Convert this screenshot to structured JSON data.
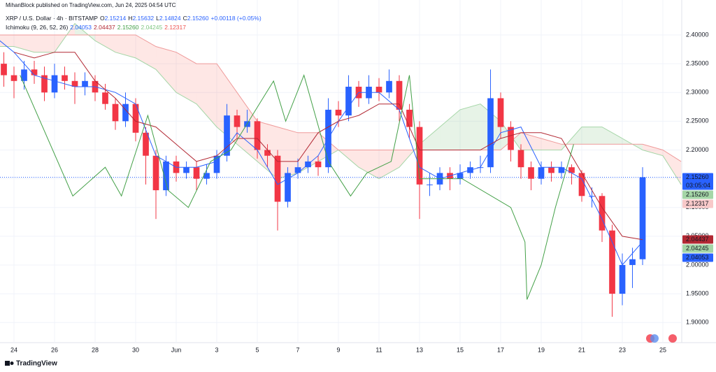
{
  "header": {
    "published": "MihanBlock published on TradingView.com, Jun 24, 2025 04:54 UTC",
    "symbol": "XRP / U.S. Dollar · 4h · BITSTAMP",
    "ohlc": [
      {
        "label": "O",
        "value": "2.15214"
      },
      {
        "label": "H",
        "value": "2.15632"
      },
      {
        "label": "L",
        "value": "2.14824"
      },
      {
        "label": "C",
        "value": "2.15260"
      }
    ],
    "change": "+0.00118 (+0.05%)",
    "indicator": "Ichimoku (9, 26, 52, 26)",
    "indicator_values": [
      {
        "value": "2.04053",
        "color": "#2962ff"
      },
      {
        "value": "2.04437",
        "color": "#b22833"
      },
      {
        "value": "2.15260",
        "color": "#43a047"
      },
      {
        "value": "2.04245",
        "color": "#81c784"
      },
      {
        "value": "2.12317",
        "color": "#ef5350"
      }
    ]
  },
  "chart_data": {
    "type": "candlestick",
    "xlim": [
      -0.69,
      32.93
    ],
    "ylim": [
      1.865,
      2.4608
    ],
    "xticks": [
      {
        "value": 0,
        "label": "24"
      },
      {
        "value": 2,
        "label": "26"
      },
      {
        "value": 4,
        "label": "28"
      },
      {
        "value": 6,
        "label": "30"
      },
      {
        "value": 8,
        "label": "Jun"
      },
      {
        "value": 10,
        "label": "3"
      },
      {
        "value": 12,
        "label": "5"
      },
      {
        "value": 14,
        "label": "7"
      },
      {
        "value": 16,
        "label": "9"
      },
      {
        "value": 18,
        "label": "11"
      },
      {
        "value": 20,
        "label": "13"
      },
      {
        "value": 22,
        "label": "15"
      },
      {
        "value": 24,
        "label": "17"
      },
      {
        "value": 26,
        "label": "19"
      },
      {
        "value": 28,
        "label": "21"
      },
      {
        "value": 30,
        "label": "23"
      },
      {
        "value": 32,
        "label": "25"
      }
    ],
    "yticks": [
      {
        "value": 1.9,
        "label": "1.90000"
      },
      {
        "value": 1.95,
        "label": "1.95000"
      },
      {
        "value": 2.0,
        "label": "2.00000"
      },
      {
        "value": 2.05,
        "label": "2.05000"
      },
      {
        "value": 2.1,
        "label": "2.10000"
      },
      {
        "value": 2.15,
        "label": "2.15000"
      },
      {
        "value": 2.2,
        "label": "2.20000"
      },
      {
        "value": 2.25,
        "label": "2.25000"
      },
      {
        "value": 2.3,
        "label": "2.30000"
      },
      {
        "value": 2.35,
        "label": "2.35000"
      },
      {
        "value": 2.4,
        "label": "2.40000"
      }
    ],
    "up_color": "#2962ff",
    "down_color": "#f23645",
    "x": [
      -0.5,
      0,
      0.5,
      1,
      1.5,
      2,
      2.5,
      3,
      3.5,
      4,
      4.5,
      5,
      5.5,
      6,
      6.5,
      7,
      7.5,
      8,
      8.5,
      9,
      9.5,
      10,
      10.5,
      11,
      11.5,
      12,
      12.5,
      13,
      13.5,
      14,
      14.5,
      15,
      15.5,
      16,
      16.5,
      17,
      17.5,
      18,
      18.5,
      19,
      19.5,
      20,
      20.5,
      21,
      21.5,
      22,
      22.5,
      23,
      23.5,
      24,
      24.5,
      25,
      25.5,
      26,
      26.5,
      27,
      27.5,
      28,
      28.5,
      29,
      29.5,
      30,
      30.5,
      31
    ],
    "open": [
      2.35,
      2.33,
      2.32,
      2.34,
      2.33,
      2.3,
      2.33,
      2.32,
      2.31,
      2.32,
      2.3,
      2.28,
      2.25,
      2.28,
      2.23,
      2.19,
      2.13,
      2.18,
      2.16,
      2.17,
      2.15,
      2.16,
      2.19,
      2.26,
      2.24,
      2.25,
      2.2,
      2.19,
      2.11,
      2.16,
      2.17,
      2.18,
      2.17,
      2.27,
      2.26,
      2.31,
      2.29,
      2.31,
      2.3,
      2.32,
      2.27,
      2.24,
      2.14,
      2.14,
      2.16,
      2.15,
      2.16,
      2.17,
      2.17,
      2.29,
      2.24,
      2.2,
      2.17,
      2.15,
      2.17,
      2.16,
      2.17,
      2.16,
      2.12,
      2.12,
      2.06,
      1.95,
      2.0,
      2.01
    ],
    "high": [
      2.37,
      2.345,
      2.355,
      2.355,
      2.345,
      2.35,
      2.345,
      2.335,
      2.335,
      2.33,
      2.315,
      2.29,
      2.3,
      2.29,
      2.24,
      2.2,
      2.19,
      2.19,
      2.18,
      2.18,
      2.175,
      2.2,
      2.28,
      2.27,
      2.27,
      2.255,
      2.21,
      2.2,
      2.17,
      2.185,
      2.19,
      2.19,
      2.29,
      2.285,
      2.33,
      2.32,
      2.33,
      2.325,
      2.34,
      2.33,
      2.28,
      2.25,
      2.16,
      2.17,
      2.17,
      2.175,
      2.18,
      2.19,
      2.34,
      2.3,
      2.25,
      2.21,
      2.18,
      2.18,
      2.18,
      2.18,
      2.175,
      2.165,
      2.135,
      2.125,
      2.07,
      2.02,
      2.03,
      2.17
    ],
    "low": [
      2.31,
      2.29,
      2.305,
      2.315,
      2.285,
      2.29,
      2.305,
      2.28,
      2.295,
      2.285,
      2.27,
      2.235,
      2.24,
      2.215,
      2.14,
      2.08,
      2.12,
      2.145,
      2.15,
      2.13,
      2.14,
      2.15,
      2.18,
      2.22,
      2.23,
      2.185,
      2.17,
      2.06,
      2.1,
      2.15,
      2.16,
      2.155,
      2.16,
      2.24,
      2.25,
      2.275,
      2.28,
      2.285,
      2.29,
      2.25,
      2.22,
      2.08,
      2.12,
      2.13,
      2.13,
      2.14,
      2.15,
      2.16,
      2.16,
      2.22,
      2.18,
      2.15,
      2.13,
      2.14,
      2.145,
      2.15,
      2.14,
      2.11,
      2.1,
      2.04,
      1.91,
      1.93,
      1.96,
      2.0
    ],
    "close": [
      2.33,
      2.32,
      2.34,
      2.33,
      2.3,
      2.33,
      2.32,
      2.31,
      2.32,
      2.3,
      2.28,
      2.25,
      2.28,
      2.23,
      2.19,
      2.13,
      2.18,
      2.16,
      2.17,
      2.15,
      2.16,
      2.19,
      2.26,
      2.24,
      2.25,
      2.2,
      2.19,
      2.11,
      2.16,
      2.17,
      2.18,
      2.17,
      2.27,
      2.26,
      2.31,
      2.29,
      2.31,
      2.3,
      2.32,
      2.27,
      2.24,
      2.14,
      2.14,
      2.16,
      2.15,
      2.16,
      2.17,
      2.17,
      2.29,
      2.24,
      2.2,
      2.17,
      2.15,
      2.17,
      2.16,
      2.17,
      2.16,
      2.12,
      2.12,
      2.06,
      1.95,
      2.0,
      2.01,
      2.1526
    ],
    "cloud": {
      "up_color": "#43a047",
      "down_color": "#f44336",
      "a_color": "#a5d6a7",
      "b_color": "#ef9a9a",
      "x": [
        -0.7,
        0,
        1,
        2,
        3,
        4,
        5,
        6,
        7,
        8,
        9,
        10,
        11,
        12,
        13,
        14,
        15,
        16,
        17,
        18,
        19,
        20,
        21,
        22,
        23,
        24,
        25,
        26,
        27,
        28,
        29,
        30,
        31,
        32,
        32.9
      ],
      "span_a": [
        2.38,
        2.38,
        2.37,
        2.37,
        2.42,
        2.39,
        2.37,
        2.36,
        2.34,
        2.3,
        2.28,
        2.24,
        2.21,
        2.18,
        2.15,
        2.16,
        2.18,
        2.2,
        2.17,
        2.15,
        2.17,
        2.21,
        2.24,
        2.27,
        2.28,
        2.25,
        2.2,
        2.2,
        2.2,
        2.24,
        2.24,
        2.22,
        2.2,
        2.19,
        2.14
      ],
      "span_b": [
        2.4,
        2.4,
        2.4,
        2.4,
        2.4,
        2.4,
        2.4,
        2.4,
        2.38,
        2.37,
        2.35,
        2.35,
        2.3,
        2.25,
        2.24,
        2.23,
        2.23,
        2.2,
        2.2,
        2.2,
        2.2,
        2.2,
        2.2,
        2.2,
        2.2,
        2.2,
        2.23,
        2.22,
        2.21,
        2.21,
        2.21,
        2.21,
        2.21,
        2.2,
        2.18
      ]
    },
    "lines": [
      {
        "color": "#2962ff",
        "x": [
          -0.7,
          0,
          1,
          2,
          3,
          4,
          5,
          6,
          7,
          8,
          9,
          10,
          11,
          12,
          13,
          14,
          15,
          16,
          17,
          18,
          19,
          20,
          21,
          22,
          23,
          24,
          25,
          26,
          27,
          28,
          29,
          30,
          31
        ],
        "values": [
          2.39,
          2.37,
          2.33,
          2.32,
          2.31,
          2.31,
          2.3,
          2.28,
          2.19,
          2.17,
          2.17,
          2.18,
          2.23,
          2.2,
          2.14,
          2.16,
          2.19,
          2.25,
          2.3,
          2.3,
          2.27,
          2.17,
          2.15,
          2.16,
          2.17,
          2.23,
          2.24,
          2.17,
          2.17,
          2.15,
          2.08,
          2.0,
          2.0405
        ]
      },
      {
        "color": "#b22833",
        "x": [
          0,
          1,
          2,
          3,
          4,
          5,
          6,
          7,
          8,
          9,
          10,
          11,
          12,
          13,
          14,
          15,
          16,
          17,
          18,
          19,
          20,
          21,
          22,
          23,
          24,
          25,
          26,
          27,
          28,
          29,
          30,
          31
        ],
        "values": [
          2.37,
          2.36,
          2.37,
          2.37,
          2.32,
          2.29,
          2.25,
          2.24,
          2.21,
          2.18,
          2.19,
          2.22,
          2.22,
          2.18,
          2.18,
          2.23,
          2.25,
          2.26,
          2.28,
          2.28,
          2.2,
          2.2,
          2.2,
          2.2,
          2.22,
          2.23,
          2.23,
          2.22,
          2.16,
          2.1,
          2.05,
          2.044
        ]
      },
      {
        "color": "#43a047",
        "x": [
          0.3,
          2.9,
          4.5,
          5.3,
          6.6,
          7.6,
          8.6,
          9.7,
          10.7,
          12.8,
          13.4,
          14.3,
          15.5,
          16.6,
          17.4,
          18.6,
          19.5,
          20,
          22.1,
          24.5,
          25.2,
          25.3,
          26,
          26.7,
          27.6
        ],
        "values": [
          2.33,
          2.12,
          2.17,
          2.12,
          2.26,
          2.13,
          2.1,
          2.18,
          2.2,
          2.32,
          2.25,
          2.33,
          2.18,
          2.12,
          2.16,
          2.18,
          2.33,
          2.15,
          2.15,
          2.1,
          2.04,
          1.94,
          2.0,
          2.1,
          2.21
        ]
      }
    ],
    "price_labels": [
      {
        "value": 2.1526,
        "label": "2.15260",
        "color": "#2962ff",
        "text_color": "#ffffff",
        "countdown": "03:05:04"
      },
      {
        "value": 2.1526,
        "label": "2.15260",
        "color": "#a5d6a7",
        "text_color": "#131722"
      },
      {
        "value": 2.12317,
        "label": "2.12317",
        "color": "#f8c9c9",
        "text_color": "#131722"
      },
      {
        "value": 2.04437,
        "label": "2.04437",
        "color": "#b22833",
        "text_color": "#ffffff"
      },
      {
        "value": 2.04245,
        "label": "2.04245",
        "color": "#a5d6a7",
        "text_color": "#131722"
      },
      {
        "value": 2.04053,
        "label": "2.04053",
        "color": "#2962ff",
        "text_color": "#ffffff"
      }
    ]
  },
  "footer": {
    "brand": "TradingView"
  }
}
